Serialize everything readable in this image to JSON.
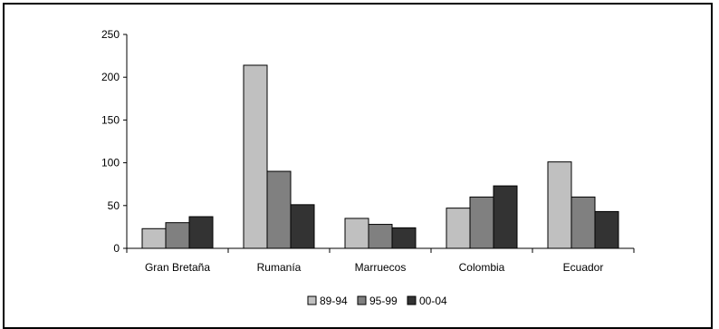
{
  "chart_data": {
    "type": "bar",
    "title": "",
    "xlabel": "",
    "ylabel": "",
    "categories": [
      "Gran Bretaña",
      "Rumanía",
      "Marruecos",
      "Colombia",
      "Ecuador"
    ],
    "series": [
      {
        "name": "89-94",
        "color": "#c0c0c0",
        "values": [
          23,
          214,
          35,
          47,
          101
        ]
      },
      {
        "name": "95-99",
        "color": "#808080",
        "values": [
          30,
          90,
          28,
          60,
          60
        ]
      },
      {
        "name": "00-04",
        "color": "#333333",
        "values": [
          37,
          51,
          24,
          73,
          43
        ]
      }
    ],
    "ylim": [
      0,
      250
    ],
    "yticks": [
      "0",
      "50",
      "100",
      "150",
      "200",
      "250"
    ],
    "grid": false,
    "legend_position": "bottom"
  }
}
